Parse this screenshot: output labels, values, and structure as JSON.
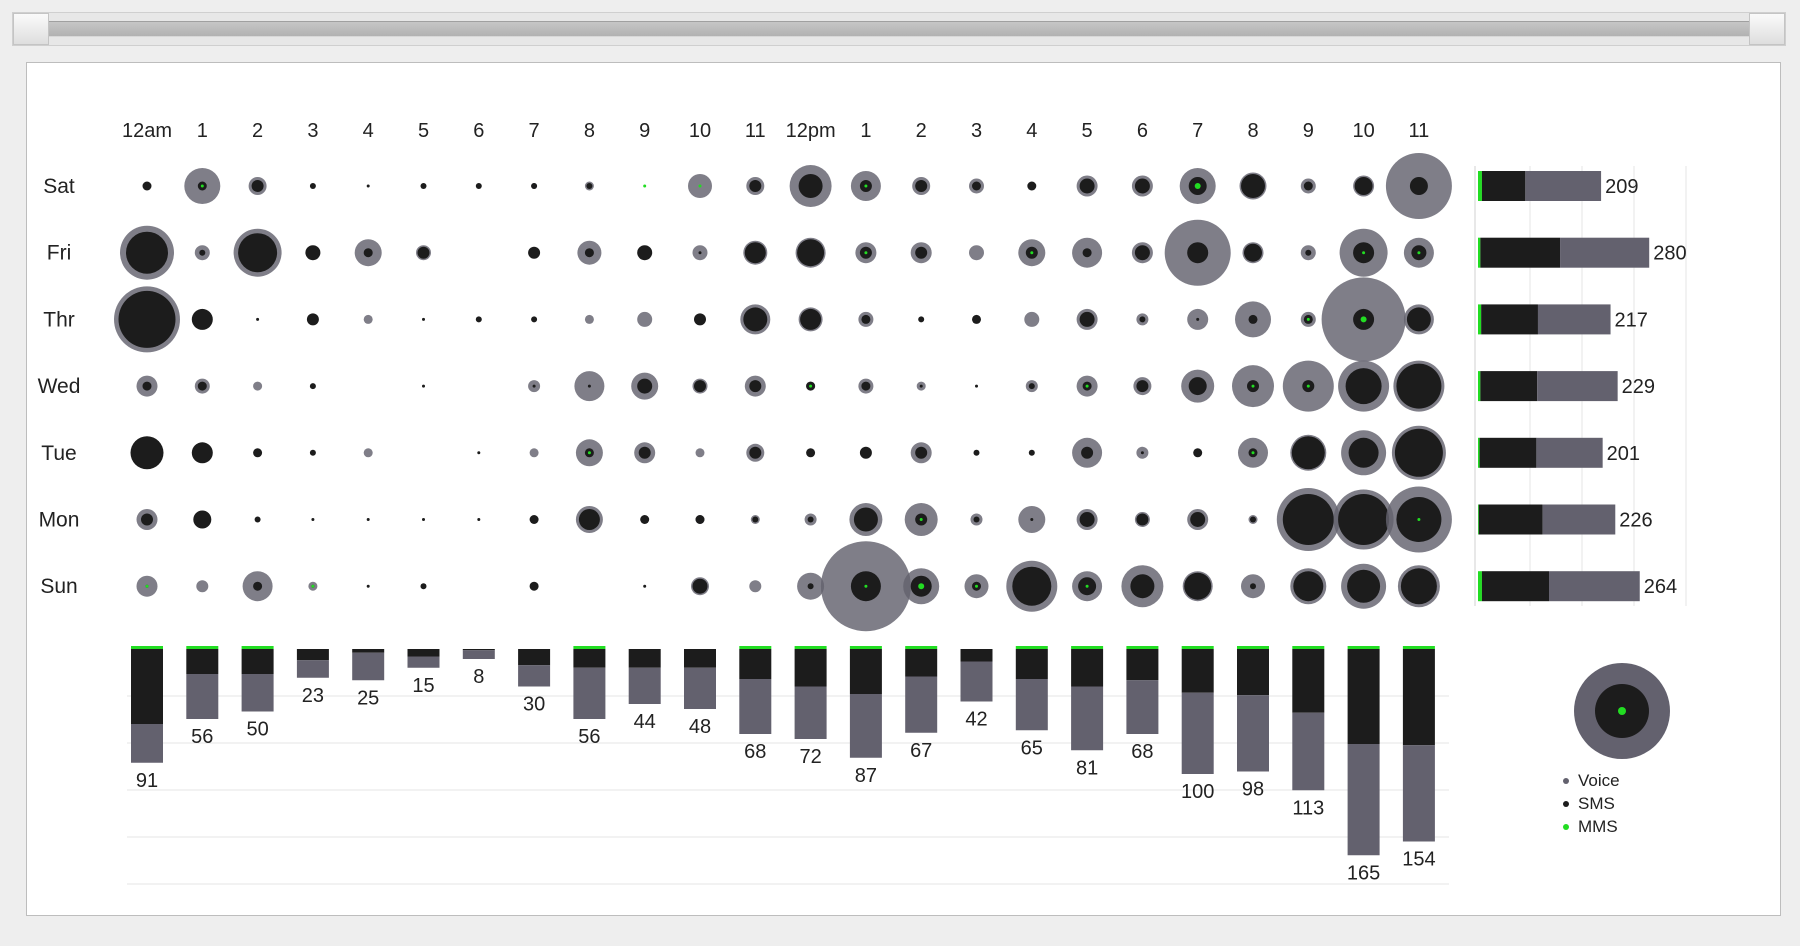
{
  "chart_data": {
    "type": "bubble-matrix",
    "hours": [
      "12am",
      "1",
      "2",
      "3",
      "4",
      "5",
      "6",
      "7",
      "8",
      "9",
      "10",
      "11",
      "12pm",
      "1",
      "2",
      "3",
      "4",
      "5",
      "6",
      "7",
      "8",
      "9",
      "10",
      "11"
    ],
    "days": [
      "Sat",
      "Fri",
      "Thr",
      "Wed",
      "Tue",
      "Mon",
      "Sun"
    ],
    "day_totals": [
      209,
      280,
      217,
      229,
      201,
      226,
      264
    ],
    "day_breakdown": [
      {
        "voice": 96,
        "sms": 55,
        "mms": 5
      },
      {
        "voice": 113,
        "sms": 101,
        "mms": 3
      },
      {
        "voice": 92,
        "sms": 72,
        "mms": 4
      },
      {
        "voice": 102,
        "sms": 72,
        "mms": 3
      },
      {
        "voice": 84,
        "sms": 72,
        "mms": 2
      },
      {
        "voice": 92,
        "sms": 81,
        "mms": 1
      },
      {
        "voice": 115,
        "sms": 85,
        "mms": 5
      }
    ],
    "hour_totals": [
      91,
      56,
      50,
      23,
      25,
      15,
      8,
      30,
      56,
      44,
      48,
      68,
      72,
      87,
      67,
      42,
      65,
      81,
      68,
      100,
      98,
      113,
      165,
      154
    ],
    "hour_breakdown": [
      {
        "sms": 60,
        "voice": 31
      },
      {
        "sms": 20,
        "voice": 36
      },
      {
        "sms": 20,
        "voice": 30
      },
      {
        "sms": 9,
        "voice": 14
      },
      {
        "sms": 3,
        "voice": 22
      },
      {
        "sms": 6,
        "voice": 9
      },
      {
        "sms": 1,
        "voice": 7
      },
      {
        "sms": 13,
        "voice": 17
      },
      {
        "sms": 15,
        "voice": 41
      },
      {
        "sms": 15,
        "voice": 29
      },
      {
        "sms": 15,
        "voice": 33
      },
      {
        "sms": 24,
        "voice": 44
      },
      {
        "sms": 30,
        "voice": 42
      },
      {
        "sms": 36,
        "voice": 51
      },
      {
        "sms": 22,
        "voice": 45
      },
      {
        "sms": 10,
        "voice": 32
      },
      {
        "sms": 24,
        "voice": 41
      },
      {
        "sms": 30,
        "voice": 51
      },
      {
        "sms": 25,
        "voice": 43
      },
      {
        "sms": 35,
        "voice": 65
      },
      {
        "sms": 37,
        "voice": 61
      },
      {
        "sms": 51,
        "voice": 62
      },
      {
        "sms": 76,
        "voice": 89
      },
      {
        "sms": 77,
        "voice": 77
      }
    ],
    "cells": [
      [
        [
          0,
          3,
          0
        ],
        [
          12,
          3,
          1
        ],
        [
          6,
          4,
          0
        ],
        [
          0,
          2,
          0
        ],
        [
          0,
          1,
          0
        ],
        [
          0,
          2,
          0
        ],
        [
          0,
          2,
          0
        ],
        [
          2,
          2,
          0
        ],
        [
          3,
          2,
          0
        ],
        [
          0,
          0,
          1
        ],
        [
          8,
          0,
          1
        ],
        [
          6,
          4,
          0
        ],
        [
          14,
          8,
          0
        ],
        [
          10,
          4,
          1
        ],
        [
          6,
          4,
          0
        ],
        [
          5,
          3,
          0
        ],
        [
          0,
          3,
          0
        ],
        [
          7,
          5,
          0
        ],
        [
          7,
          5,
          0
        ],
        [
          12,
          6,
          2
        ],
        [
          9,
          8,
          0
        ],
        [
          5,
          3,
          0
        ],
        [
          7,
          6,
          0
        ],
        [
          22,
          6,
          0
        ]
      ],
      [
        [
          18,
          14,
          0
        ],
        [
          5,
          2,
          0
        ],
        [
          16,
          13,
          0
        ],
        [
          0,
          5,
          0
        ],
        [
          9,
          3,
          0
        ],
        [
          5,
          4,
          0
        ],
        [
          0,
          0,
          0
        ],
        [
          0,
          4,
          0
        ],
        [
          8,
          3,
          0
        ],
        [
          0,
          5,
          0
        ],
        [
          5,
          1,
          0
        ],
        [
          8,
          7,
          0
        ],
        [
          10,
          9,
          0
        ],
        [
          7,
          4,
          1
        ],
        [
          7,
          4,
          0
        ],
        [
          5,
          0,
          0
        ],
        [
          9,
          4,
          1
        ],
        [
          10,
          3,
          0
        ],
        [
          7,
          5,
          0
        ],
        [
          22,
          7,
          0
        ],
        [
          7,
          6,
          0
        ],
        [
          5,
          2,
          0
        ],
        [
          16,
          7,
          1
        ],
        [
          10,
          5,
          1
        ]
      ],
      [
        [
          22,
          19,
          0
        ],
        [
          6,
          7,
          0
        ],
        [
          0,
          1,
          0
        ],
        [
          0,
          4,
          0
        ],
        [
          3,
          0,
          0
        ],
        [
          0,
          1,
          0
        ],
        [
          0,
          2,
          0
        ],
        [
          0,
          2,
          0
        ],
        [
          3,
          0,
          0
        ],
        [
          5,
          0,
          0
        ],
        [
          0,
          4,
          0
        ],
        [
          10,
          8,
          0
        ],
        [
          8,
          7,
          0
        ],
        [
          5,
          3,
          0
        ],
        [
          0,
          2,
          0
        ],
        [
          0,
          3,
          0
        ],
        [
          5,
          0,
          0
        ],
        [
          7,
          5,
          0
        ],
        [
          4,
          2,
          0
        ],
        [
          7,
          1,
          0
        ],
        [
          12,
          3,
          0
        ],
        [
          5,
          3,
          1
        ],
        [
          28,
          7,
          2
        ],
        [
          10,
          8,
          0
        ]
      ],
      [
        [
          7,
          3,
          0
        ],
        [
          5,
          3,
          0
        ],
        [
          3,
          0,
          0
        ],
        [
          0,
          2,
          0
        ],
        [
          0,
          0,
          0
        ],
        [
          0,
          1,
          0
        ],
        [
          0,
          0,
          0
        ],
        [
          4,
          1,
          0
        ],
        [
          10,
          1,
          0
        ],
        [
          9,
          5,
          0
        ],
        [
          5,
          4,
          0
        ],
        [
          7,
          4,
          0
        ],
        [
          3,
          3,
          1
        ],
        [
          5,
          3,
          0
        ],
        [
          3,
          1,
          0
        ],
        [
          0,
          1,
          0
        ],
        [
          4,
          2,
          0
        ],
        [
          7,
          3,
          1
        ],
        [
          6,
          4,
          0
        ],
        [
          11,
          6,
          0
        ],
        [
          14,
          4,
          1
        ],
        [
          17,
          4,
          1
        ],
        [
          17,
          12,
          0
        ],
        [
          17,
          15,
          0
        ]
      ],
      [
        [
          0,
          11,
          0
        ],
        [
          0,
          7,
          0
        ],
        [
          0,
          3,
          0
        ],
        [
          0,
          2,
          0
        ],
        [
          3,
          0,
          0
        ],
        [
          0,
          0,
          0
        ],
        [
          0,
          1,
          0
        ],
        [
          3,
          0,
          0
        ],
        [
          9,
          3,
          1
        ],
        [
          7,
          4,
          0
        ],
        [
          3,
          0,
          0
        ],
        [
          6,
          4,
          0
        ],
        [
          0,
          3,
          0
        ],
        [
          0,
          4,
          0
        ],
        [
          7,
          4,
          0
        ],
        [
          0,
          2,
          0
        ],
        [
          0,
          2,
          0
        ],
        [
          10,
          4,
          0
        ],
        [
          4,
          1,
          0
        ],
        [
          0,
          3,
          0
        ],
        [
          10,
          3,
          1
        ],
        [
          12,
          11,
          0
        ],
        [
          15,
          10,
          0
        ],
        [
          18,
          16,
          0
        ]
      ],
      [
        [
          7,
          4,
          0
        ],
        [
          0,
          6,
          0
        ],
        [
          0,
          2,
          0
        ],
        [
          0,
          1,
          0
        ],
        [
          0,
          1,
          0
        ],
        [
          0,
          1,
          0
        ],
        [
          0,
          1,
          0
        ],
        [
          0,
          3,
          0
        ],
        [
          9,
          7,
          0
        ],
        [
          0,
          3,
          0
        ],
        [
          3,
          3,
          0
        ],
        [
          3,
          2,
          0
        ],
        [
          4,
          2,
          0
        ],
        [
          11,
          8,
          0
        ],
        [
          11,
          4,
          1
        ],
        [
          4,
          2,
          0
        ],
        [
          9,
          1,
          0
        ],
        [
          7,
          5,
          0
        ],
        [
          5,
          4,
          0
        ],
        [
          7,
          5,
          0
        ],
        [
          3,
          2,
          0
        ],
        [
          21,
          17,
          0
        ],
        [
          20,
          17,
          0
        ],
        [
          22,
          15,
          1
        ]
      ],
      [
        [
          7,
          1,
          1
        ],
        [
          4,
          0,
          0
        ],
        [
          10,
          3,
          0
        ],
        [
          3,
          1,
          1
        ],
        [
          0,
          1,
          0
        ],
        [
          0,
          2,
          0
        ],
        [
          0,
          0,
          0
        ],
        [
          0,
          3,
          0
        ],
        [
          0,
          0,
          0
        ],
        [
          0,
          1,
          0
        ],
        [
          6,
          5,
          0
        ],
        [
          4,
          0,
          0
        ],
        [
          9,
          2,
          0
        ],
        [
          30,
          10,
          1
        ],
        [
          12,
          7,
          2
        ],
        [
          8,
          3,
          1
        ],
        [
          17,
          13,
          0
        ],
        [
          10,
          6,
          1
        ],
        [
          14,
          8,
          0
        ],
        [
          10,
          9,
          0
        ],
        [
          8,
          2,
          0
        ],
        [
          12,
          10,
          0
        ],
        [
          15,
          11,
          0
        ],
        [
          14,
          12,
          0
        ]
      ]
    ],
    "legend": [
      "Voice",
      "SMS",
      "MMS"
    ],
    "colors": {
      "voice": "#63616e",
      "sms": "#1c1c1c",
      "mms": "#22dd22"
    }
  }
}
